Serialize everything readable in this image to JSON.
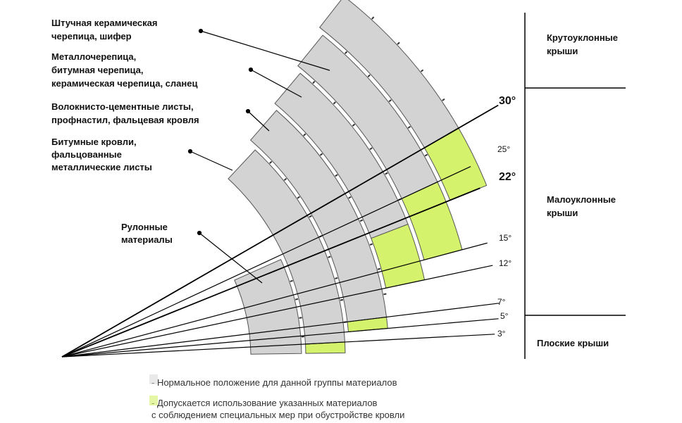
{
  "materials": [
    {
      "lines": [
        "Штучная керамическая",
        "черепица, шифер"
      ]
    },
    {
      "lines": [
        "Металлочерепица,",
        "битумная черепица,",
        "керамическая черепица, сланец"
      ]
    },
    {
      "lines": [
        "Волокнисто-цементные листы,",
        "профнастил, фальцевая кровля"
      ]
    },
    {
      "lines": [
        "Битумные кровли,",
        "фальцованные",
        "металлические листы"
      ]
    },
    {
      "lines": [
        "Рулонные",
        "материалы"
      ]
    }
  ],
  "angles": [
    "3°",
    "5°",
    "7°",
    "12°",
    "15°",
    "22°",
    "25°",
    "30°"
  ],
  "zones": [
    {
      "lines": [
        "Крутоуклонные",
        "крыши"
      ]
    },
    {
      "lines": [
        "Малоуклонные",
        "крыши"
      ]
    },
    {
      "lines": [
        "Плоские крыши"
      ]
    }
  ],
  "legend": [
    {
      "lines": [
        "- Нормальное положение для данной группы материалов"
      ]
    },
    {
      "lines": [
        "- Допускается использование указанных материалов",
        "с соблюдением специальных мер при обустройстве кровли"
      ]
    }
  ]
}
